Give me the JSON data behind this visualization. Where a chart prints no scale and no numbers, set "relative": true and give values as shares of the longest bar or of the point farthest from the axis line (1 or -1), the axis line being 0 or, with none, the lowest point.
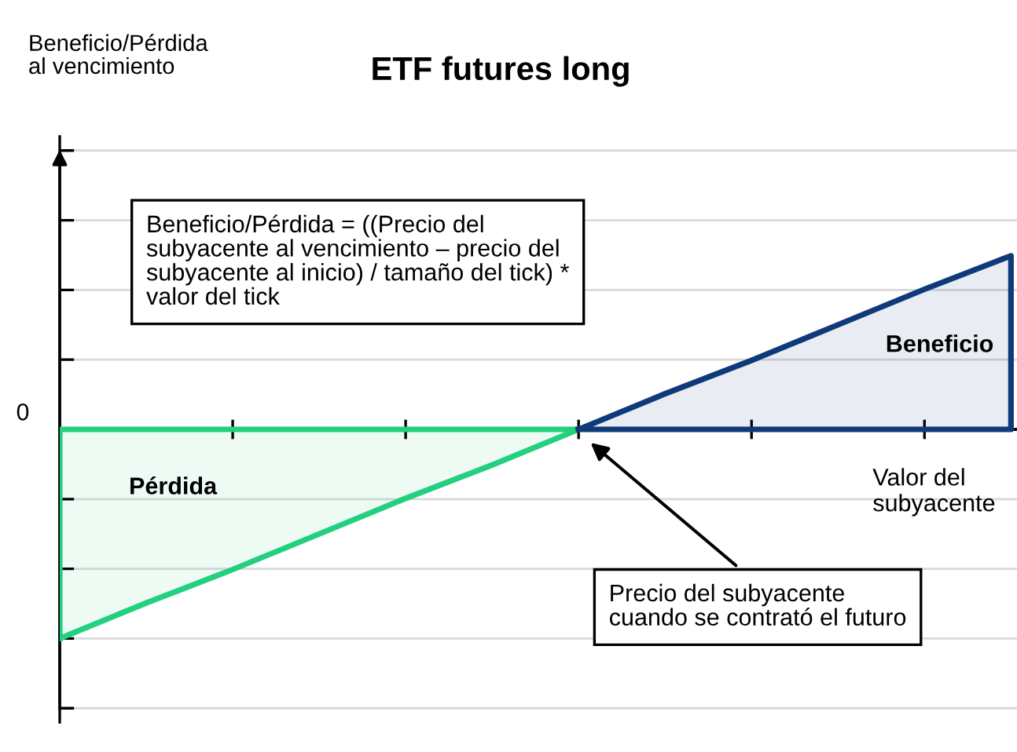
{
  "chart_data": {
    "type": "area",
    "title": "ETF futures long",
    "xlabel": "Valor del\nsubyacente",
    "relative": true,
    "grid": "y",
    "categories": [
      null,
      null,
      null,
      null,
      null,
      null,
      null,
      null,
      null,
      null,
      null,
      null
    ],
    "series": [
      {
        "color": "#22d07f",
        "values": [
          -1,
          -0.83,
          -0.67,
          -0.5,
          -0.33,
          -0.17,
          0,
          null,
          null,
          null,
          null,
          null
        ]
      },
      {
        "color": "#0e3a7a",
        "values": [
          null,
          null,
          null,
          null,
          null,
          null,
          0,
          0.17,
          0.33,
          0.5,
          0.67,
          0.83
        ]
      }
    ],
    "annotations": [
      "Beneficio/Pérdida\nal vencimiento",
      {
        "text": "0"
      },
      {
        "text": "Beneficio/Pérdida = ((Precio del\nsubyacente al vencimiento – precio del\nsubyacente al inicio) / tamaño del tick) *\nvalor del tick"
      },
      {
        "text": "Beneficio"
      },
      {
        "text": "Pérdida"
      },
      "Precio del subyacente\ncuando se contrató el futuro"
    ]
  }
}
